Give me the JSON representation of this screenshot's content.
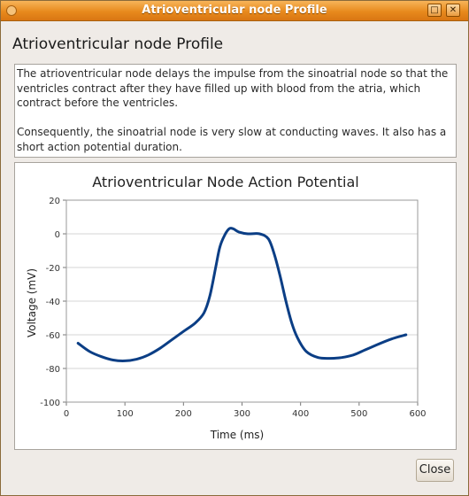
{
  "window": {
    "title": "Atrioventricular node Profile",
    "close_glyph": "✕",
    "maximize_glyph": "□"
  },
  "heading": "Atrioventricular node Profile",
  "description": {
    "paragraph1": "The atrioventricular node delays the impulse from the sinoatrial node so that the ventricles contract after they have filled up with blood from the atria, which contract before the ventricles.",
    "paragraph2": "Consequently, the sinoatrial node is very slow at conducting waves. It also has a short action potential duration."
  },
  "buttons": {
    "close_label": "Close"
  },
  "colors": {
    "series": "#0b3e85",
    "titlebar": "#e88a1d",
    "grid": "#d6d6d6"
  },
  "chart_data": {
    "type": "line",
    "title": "Atrioventricular Node Action Potential",
    "xlabel": "Time (ms)",
    "ylabel": "Voltage (mV)",
    "xlim": [
      0,
      600
    ],
    "ylim": [
      -100,
      20
    ],
    "xticks": [
      0,
      100,
      200,
      300,
      400,
      500,
      600
    ],
    "yticks": [
      20,
      0,
      -20,
      -40,
      -60,
      -80,
      -100
    ],
    "grid": "horizontal",
    "series": [
      {
        "points": [
          [
            20,
            -65
          ],
          [
            40,
            -70
          ],
          [
            60,
            -73
          ],
          [
            80,
            -75
          ],
          [
            100,
            -75.5
          ],
          [
            120,
            -74.5
          ],
          [
            140,
            -72
          ],
          [
            160,
            -68
          ],
          [
            180,
            -63
          ],
          [
            200,
            -58
          ],
          [
            220,
            -53
          ],
          [
            235,
            -47
          ],
          [
            245,
            -37
          ],
          [
            255,
            -20
          ],
          [
            262,
            -8
          ],
          [
            270,
            -1
          ],
          [
            278,
            3
          ],
          [
            285,
            3
          ],
          [
            295,
            1
          ],
          [
            310,
            0
          ],
          [
            330,
            0
          ],
          [
            345,
            -3
          ],
          [
            355,
            -12
          ],
          [
            365,
            -25
          ],
          [
            375,
            -40
          ],
          [
            385,
            -53
          ],
          [
            395,
            -62
          ],
          [
            410,
            -70
          ],
          [
            430,
            -73.5
          ],
          [
            450,
            -74
          ],
          [
            470,
            -73.5
          ],
          [
            490,
            -72
          ],
          [
            510,
            -69
          ],
          [
            530,
            -66
          ],
          [
            555,
            -62.5
          ],
          [
            580,
            -60
          ]
        ]
      }
    ]
  }
}
